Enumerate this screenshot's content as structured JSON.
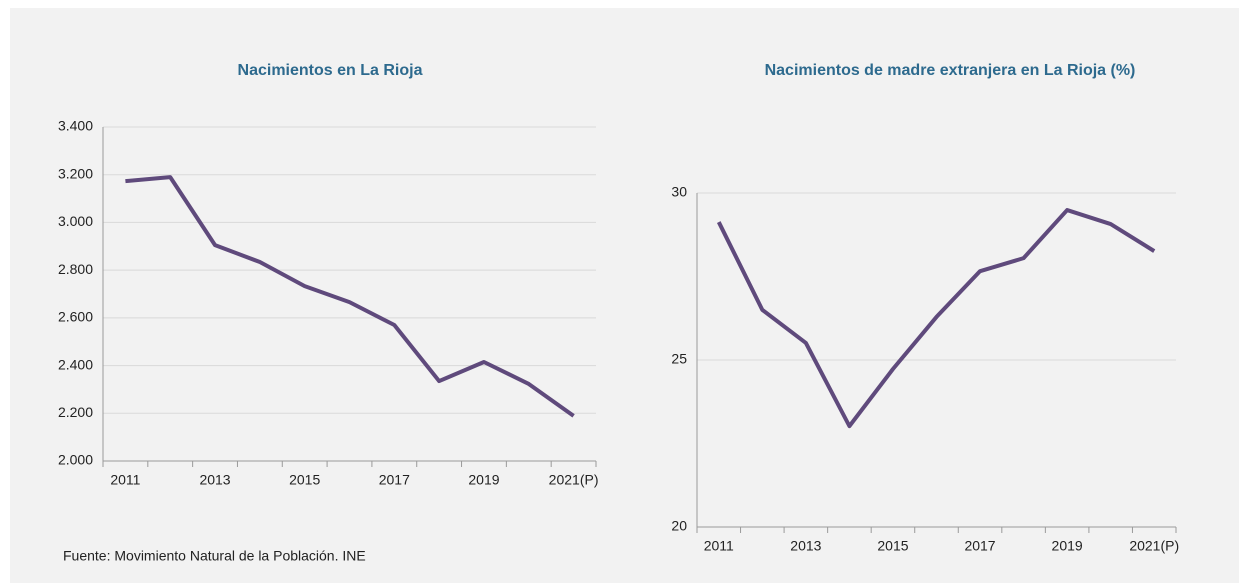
{
  "chart_data": [
    {
      "type": "line",
      "title": "Nacimientos en La Rioja",
      "categories": [
        "2011",
        null,
        "2013",
        null,
        "2015",
        null,
        "2017",
        null,
        "2019",
        null,
        "2021(P)"
      ],
      "series": [
        {
          "name": "Nacimientos",
          "color": "#5f4a7c",
          "values": [
            3173,
            3190,
            2905,
            2834,
            2733,
            2666,
            2570,
            2335,
            2415,
            2323,
            2189
          ]
        }
      ],
      "ylim": [
        2000,
        3400
      ],
      "yticks": [
        {
          "value": 2000,
          "label": "2.000"
        },
        {
          "value": 2200,
          "label": "2.200"
        },
        {
          "value": 2400,
          "label": "2.400"
        },
        {
          "value": 2600,
          "label": "2.600"
        },
        {
          "value": 2800,
          "label": "2.800"
        },
        {
          "value": 3000,
          "label": "3.000"
        },
        {
          "value": 3200,
          "label": "3.200"
        },
        {
          "value": 3400,
          "label": "3.400"
        }
      ],
      "grid": true
    },
    {
      "type": "line",
      "title": "Nacimientos de madre extranjera en La Rioja (%)",
      "categories": [
        "2011",
        null,
        "2013",
        null,
        "2015",
        null,
        "2017",
        null,
        "2019",
        null,
        "2021(P)"
      ],
      "series": [
        {
          "name": "Madre extranjera",
          "color": "#5f4a7c",
          "values": [
            29.13,
            26.5,
            25.51,
            23.02,
            24.73,
            26.29,
            27.66,
            28.05,
            29.49,
            29.07,
            28.26
          ]
        }
      ],
      "ylim": [
        20,
        30
      ],
      "yticks": [
        20,
        25,
        30
      ],
      "grid": true
    }
  ],
  "source": "Fuente: Movimiento Natural de la Población. INE"
}
